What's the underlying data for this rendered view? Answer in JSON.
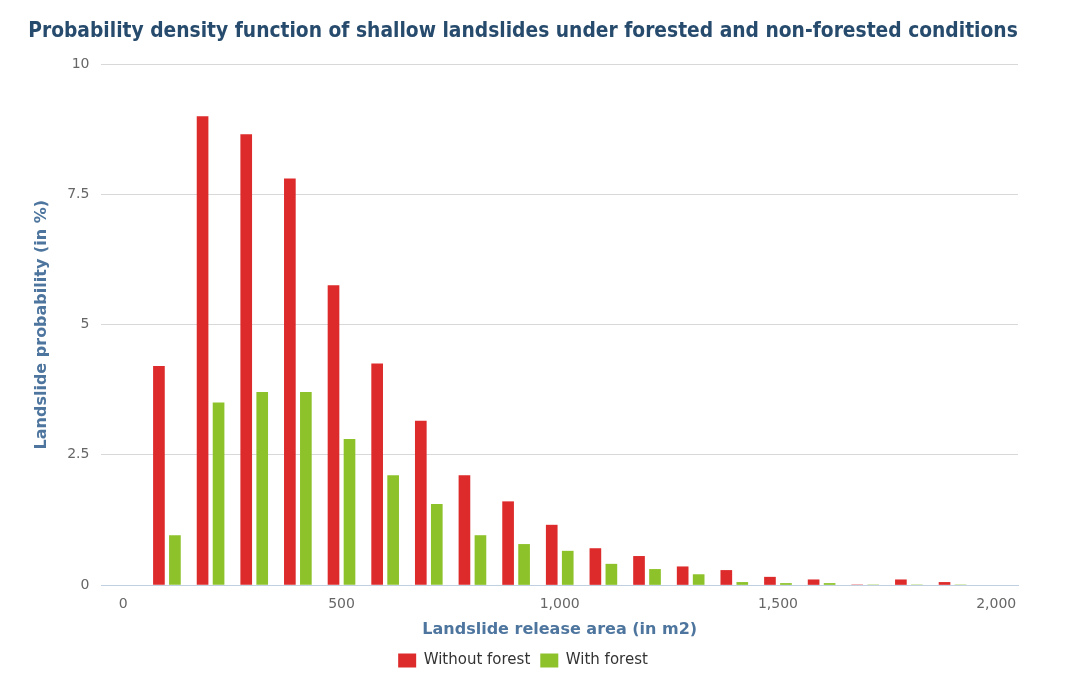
{
  "chart_data": {
    "type": "bar",
    "title": "Probability density function of shallow landslides under forested and non-forested conditions",
    "xlabel": "Landslide release area (in m2)",
    "ylabel": "Landslide probability (in %)",
    "x": [
      100,
      200,
      300,
      400,
      500,
      600,
      700,
      800,
      900,
      1000,
      1100,
      1200,
      1300,
      1400,
      1500,
      1600,
      1700,
      1800,
      1900
    ],
    "series": [
      {
        "name": "Without forest",
        "color": "#dd2a2a",
        "values": [
          4.2,
          9.0,
          8.65,
          7.8,
          5.75,
          4.25,
          3.15,
          2.1,
          1.6,
          1.15,
          0.7,
          0.55,
          0.35,
          0.28,
          0.15,
          0.1,
          0,
          0.1,
          0.05
        ]
      },
      {
        "name": "With forest",
        "color": "#8dc22a",
        "values": [
          0.95,
          3.5,
          3.7,
          3.7,
          2.8,
          2.1,
          1.55,
          0.95,
          0.78,
          0.65,
          0.4,
          0.3,
          0.2,
          0.05,
          0.03,
          0.03,
          0,
          0,
          0
        ]
      }
    ],
    "xlim": [
      -50,
      2050
    ],
    "xticks": [
      0,
      {
        "value": 500,
        "label": "500"
      },
      {
        "value": 1000,
        "label": "1,000"
      },
      {
        "value": 1500,
        "label": "1,500"
      },
      {
        "value": 2000,
        "label": "2,000"
      }
    ],
    "ylim": [
      0,
      10
    ],
    "yticks": [
      0,
      2.5,
      5,
      7.5,
      10
    ],
    "grid": "y",
    "legend": "bottom"
  }
}
